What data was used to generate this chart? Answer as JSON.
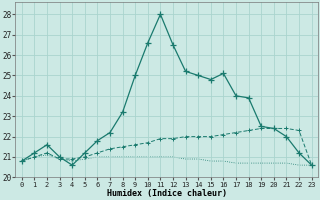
{
  "xlabel": "Humidex (Indice chaleur)",
  "background_color": "#cce9e4",
  "grid_color": "#aad4ce",
  "line_color": "#1a7a6e",
  "xlim": [
    -0.5,
    23.5
  ],
  "ylim": [
    20,
    28.6
  ],
  "yticks": [
    20,
    21,
    22,
    23,
    24,
    25,
    26,
    27,
    28
  ],
  "xticks": [
    0,
    1,
    2,
    3,
    4,
    5,
    6,
    7,
    8,
    9,
    10,
    11,
    12,
    13,
    14,
    15,
    16,
    17,
    18,
    19,
    20,
    21,
    22,
    23
  ],
  "series1_x": [
    0,
    1,
    2,
    3,
    4,
    5,
    6,
    7,
    8,
    9,
    10,
    11,
    12,
    13,
    14,
    15,
    16,
    17,
    18,
    19,
    20,
    21,
    22,
    23
  ],
  "series1_y": [
    20.8,
    21.2,
    21.6,
    21.0,
    20.6,
    21.2,
    21.8,
    22.2,
    23.2,
    25.0,
    26.6,
    28.0,
    26.5,
    25.2,
    25.0,
    24.8,
    25.1,
    24.0,
    23.9,
    22.5,
    22.4,
    22.0,
    21.2,
    20.6
  ],
  "series2_x": [
    0,
    1,
    2,
    3,
    4,
    5,
    6,
    7,
    8,
    9,
    10,
    11,
    12,
    13,
    14,
    15,
    16,
    17,
    18,
    19,
    20,
    21,
    22,
    23
  ],
  "series2_y": [
    20.8,
    21.0,
    21.2,
    20.9,
    20.9,
    21.0,
    21.2,
    21.4,
    21.5,
    21.6,
    21.7,
    21.9,
    21.9,
    22.0,
    22.0,
    22.0,
    22.1,
    22.2,
    22.3,
    22.4,
    22.4,
    22.4,
    22.3,
    20.6
  ],
  "series3_x": [
    0,
    1,
    2,
    3,
    4,
    5,
    6,
    7,
    8,
    9,
    10,
    11,
    12,
    13,
    14,
    15,
    16,
    17,
    18,
    19,
    20,
    21,
    22,
    23
  ],
  "series3_y": [
    20.8,
    21.0,
    21.1,
    20.9,
    20.8,
    20.9,
    21.0,
    21.0,
    21.0,
    21.0,
    21.0,
    21.0,
    21.0,
    20.9,
    20.9,
    20.8,
    20.8,
    20.7,
    20.7,
    20.7,
    20.7,
    20.7,
    20.6,
    20.6
  ]
}
